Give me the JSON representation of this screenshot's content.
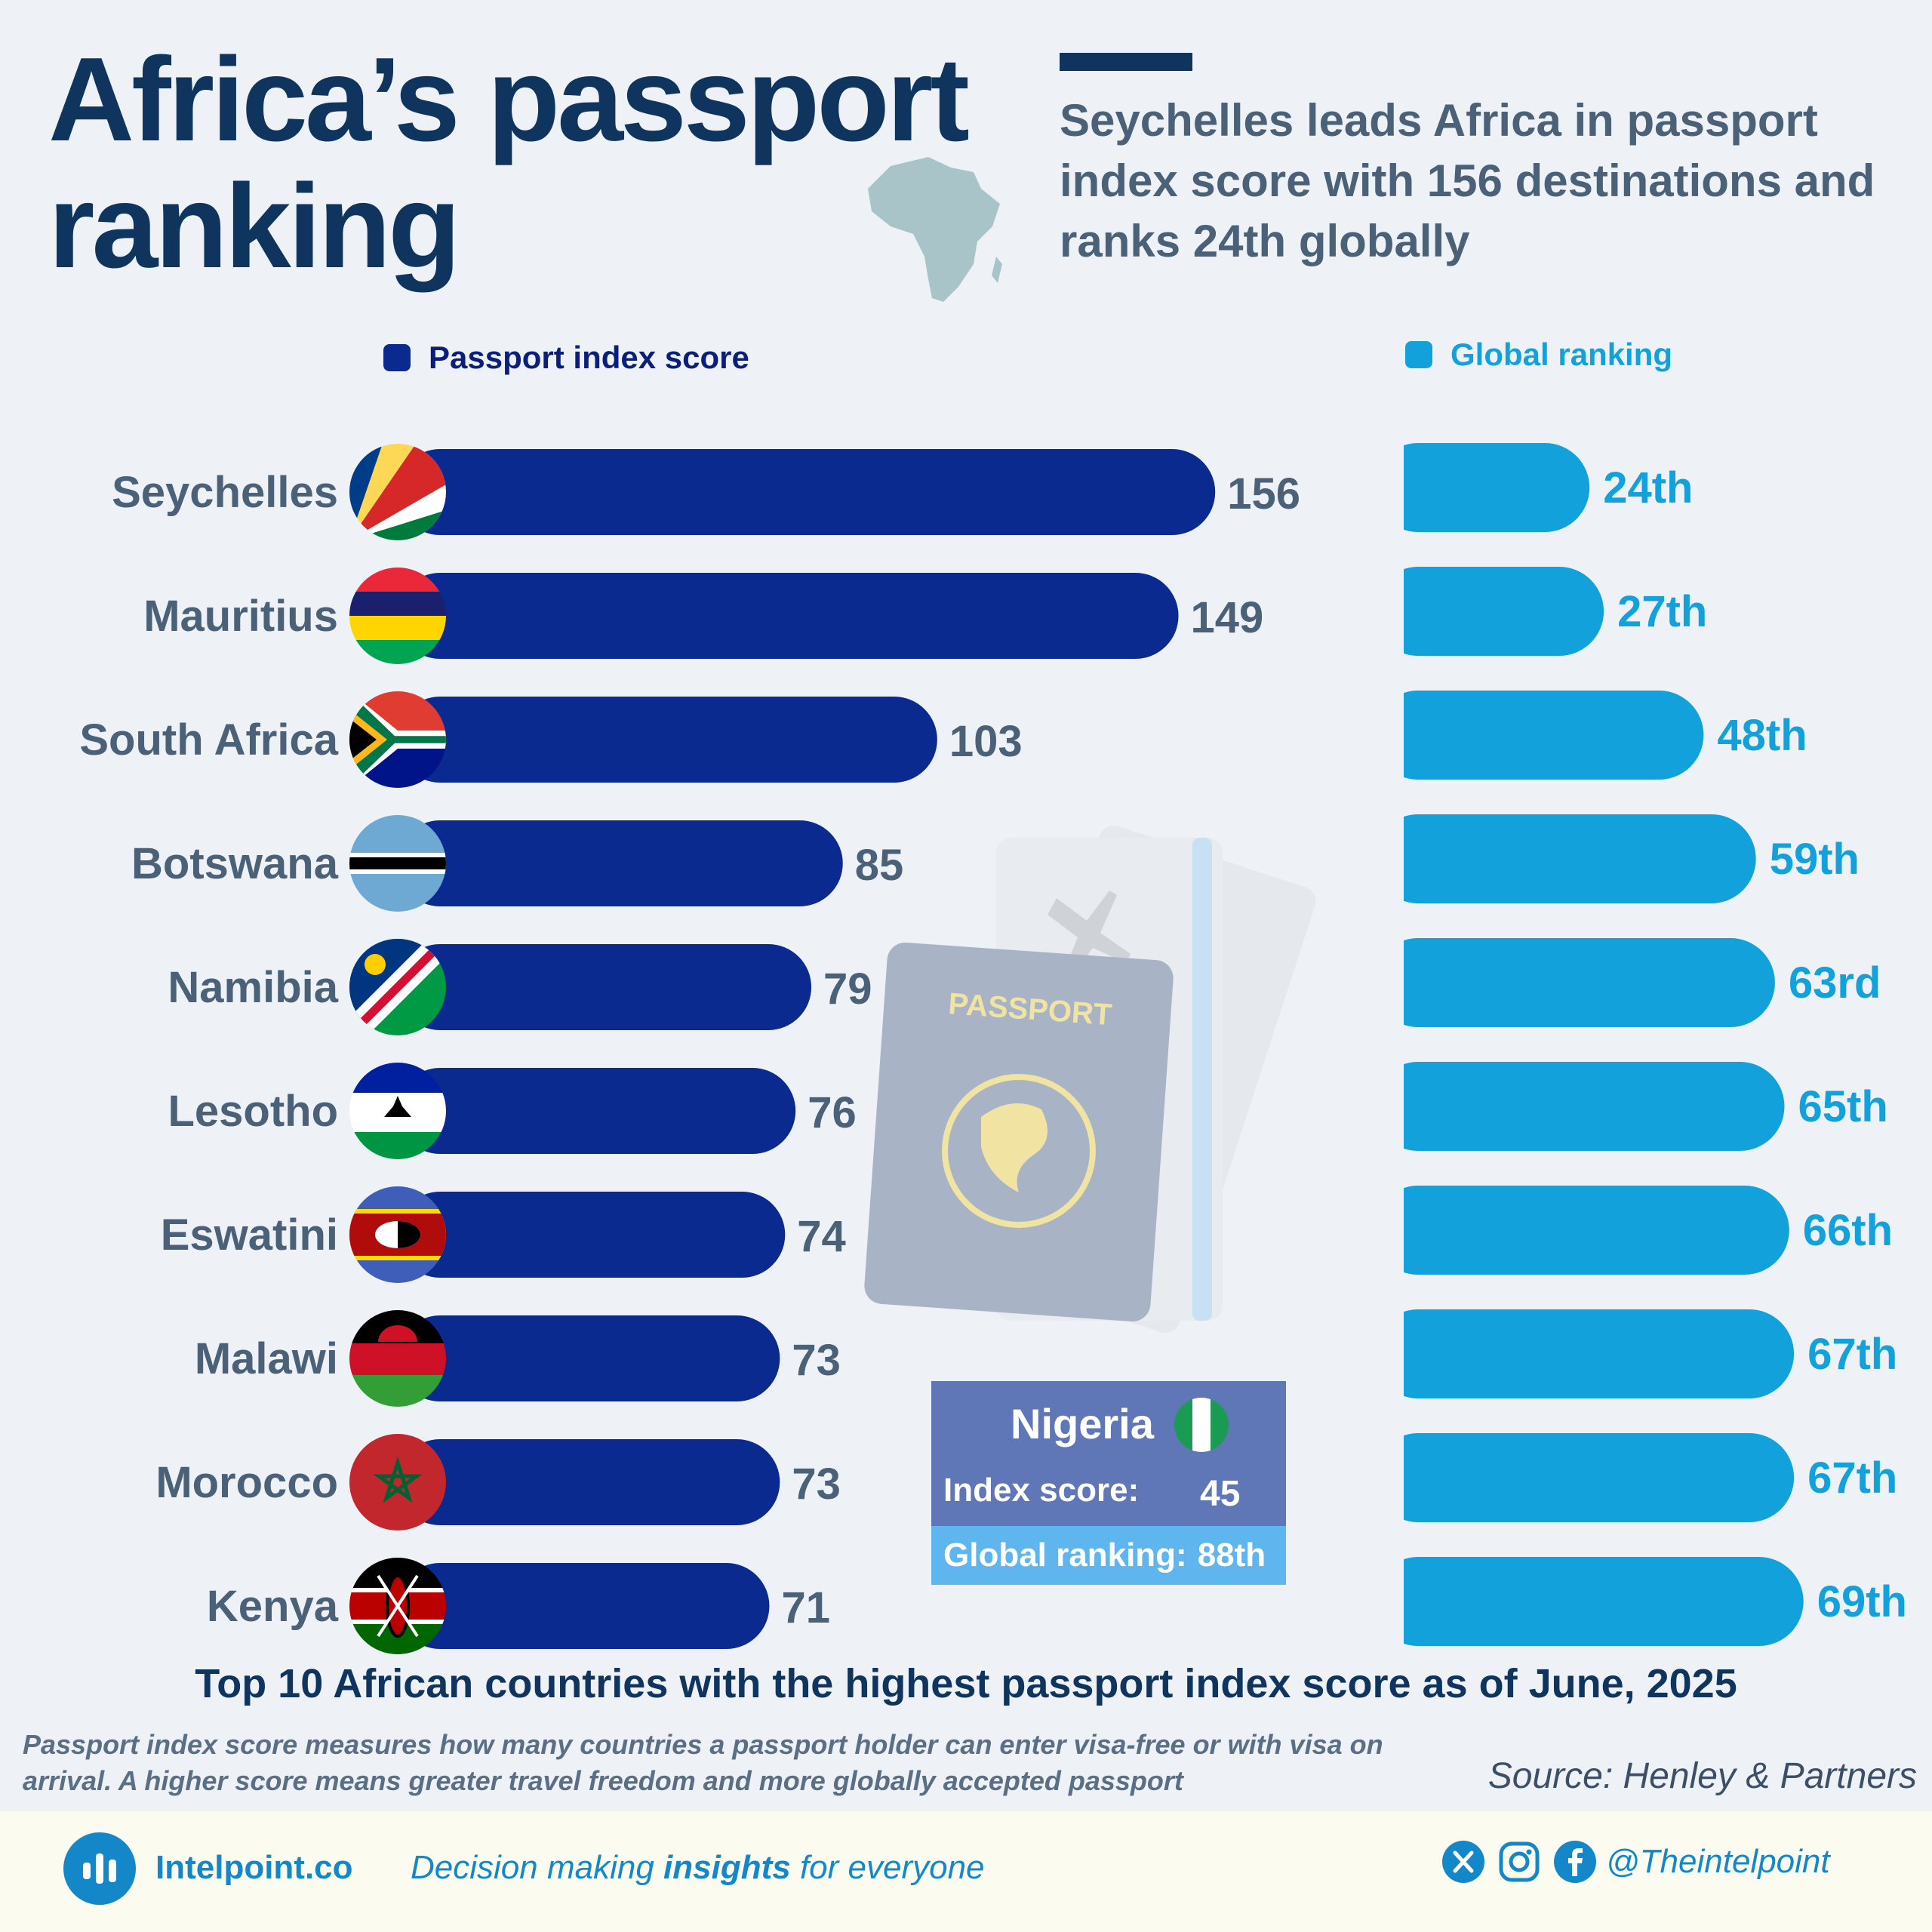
{
  "header": {
    "title": "Africa’s passport ranking",
    "subtitle": "Seychelles leads Africa in passport index score with 156 destinations and ranks 24th globally"
  },
  "legend": {
    "score_label": "Passport index score",
    "rank_label": "Global ranking"
  },
  "colors": {
    "score_bar": "#0a2a8f",
    "rank_bar": "#13a1dc",
    "title": "#0f355f",
    "label": "#4a6178"
  },
  "chart_data": {
    "type": "bar",
    "orientation": "horizontal",
    "title": "Top 10 African countries with the highest passport index score as of June, 2025",
    "categories": [
      "Seychelles",
      "Mauritius",
      "South Africa",
      "Botswana",
      "Namibia",
      "Lesotho",
      "Eswatini",
      "Malawi",
      "Morocco",
      "Kenya"
    ],
    "series": [
      {
        "name": "Passport index score",
        "values": [
          156,
          149,
          103,
          85,
          79,
          76,
          74,
          73,
          73,
          71
        ]
      },
      {
        "name": "Global ranking",
        "values": [
          24,
          27,
          48,
          59,
          63,
          65,
          66,
          67,
          67,
          69
        ],
        "labels": [
          "24th",
          "27th",
          "48th",
          "59th",
          "63rd",
          "65th",
          "66th",
          "67th",
          "67th",
          "69th"
        ]
      }
    ],
    "xlim": [
      0,
      160
    ]
  },
  "flags": [
    "seychelles-flag-icon",
    "mauritius-flag-icon",
    "south-africa-flag-icon",
    "botswana-flag-icon",
    "namibia-flag-icon",
    "lesotho-flag-icon",
    "eswatini-flag-icon",
    "malawi-flag-icon",
    "morocco-flag-icon",
    "kenya-flag-icon"
  ],
  "nigeria": {
    "name": "Nigeria",
    "score_label": "Index score:",
    "score_value": "45",
    "rank_label": "Global ranking:",
    "rank_value": "88th"
  },
  "note": "Passport index score measures how many countries a passport holder can enter visa-free or with visa on arrival. A higher score means greater travel freedom and more globally accepted passport",
  "source": "Source: Henley & Partners",
  "footer": {
    "brand": "Intelpoint.co",
    "tagline_pre": "Decision making ",
    "tagline_bold": "insights",
    "tagline_post": " for everyone",
    "handle": "@Theintelpoint"
  }
}
